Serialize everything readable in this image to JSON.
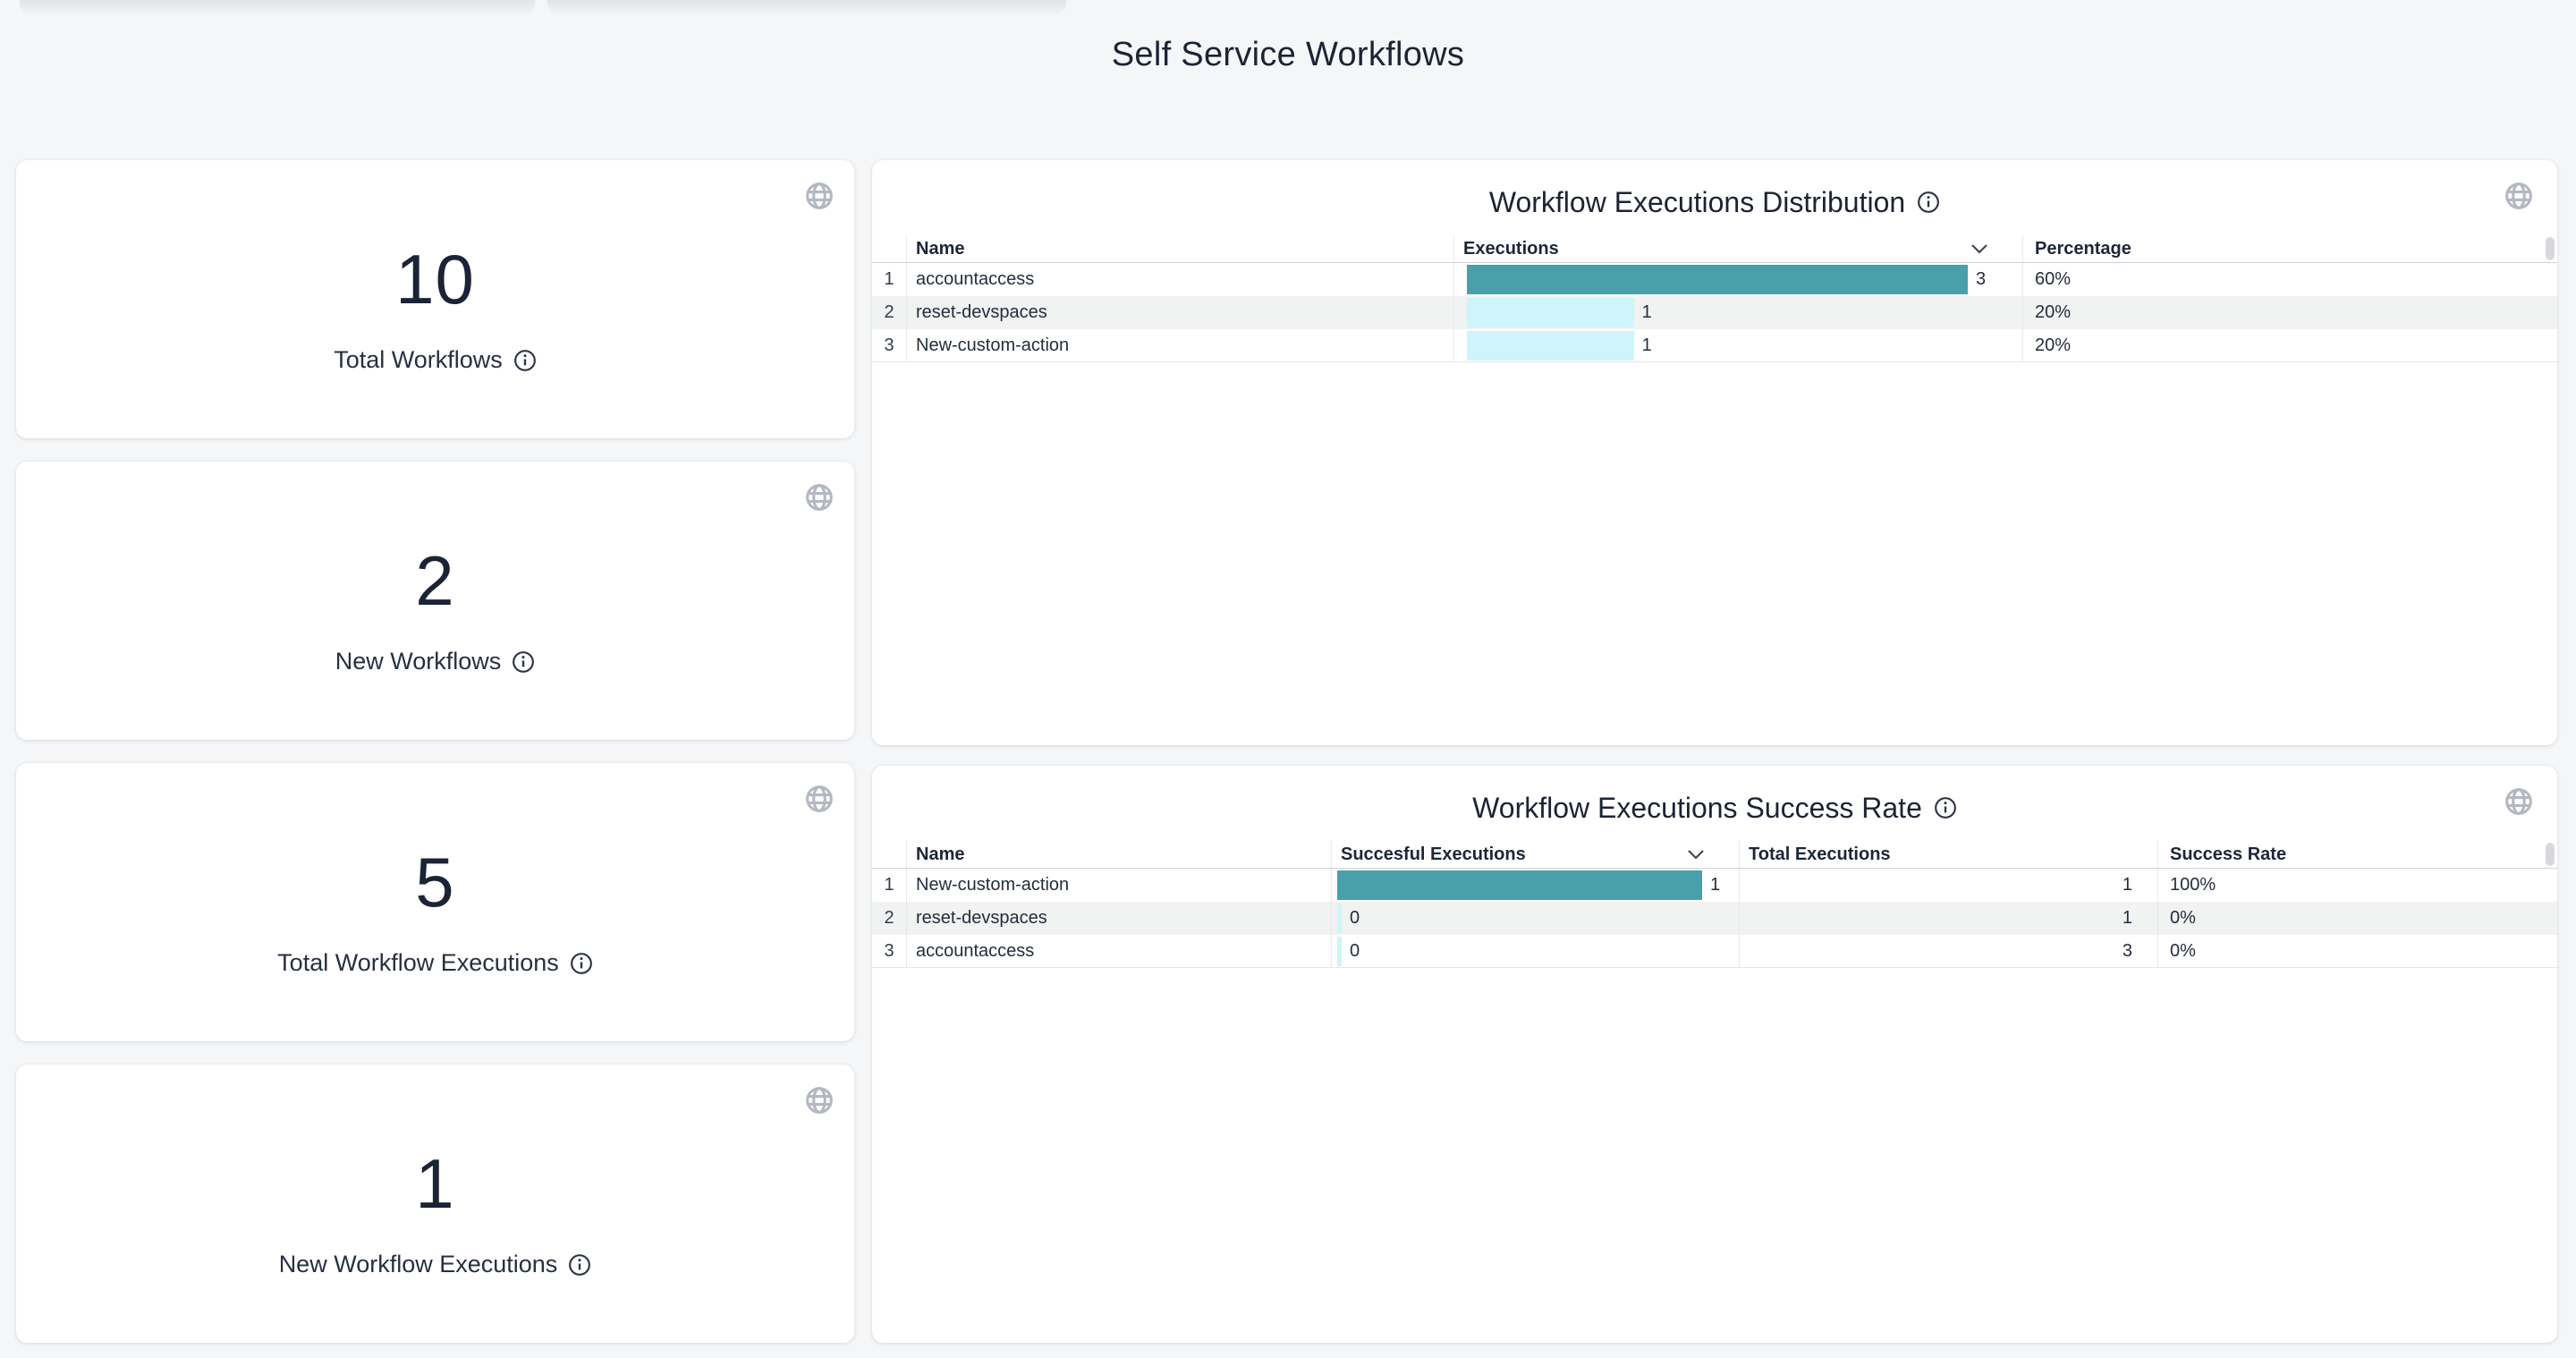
{
  "page": {
    "title": "Self Service Workflows"
  },
  "colors": {
    "bar_max": "#4aa0aa",
    "bar_other": "#cdf5fb",
    "page_background": "#f4f6f8",
    "zebra_row": "#f1f2f2",
    "text_dark": "#1c2433"
  },
  "stat_cards": [
    {
      "value": "10",
      "label": "Total Workflows"
    },
    {
      "value": "2",
      "label": "New Workflows"
    },
    {
      "value": "5",
      "label": "Total Workflow Executions"
    },
    {
      "value": "1",
      "label": "New Workflow Executions"
    }
  ],
  "distribution_table": {
    "title": "Workflow Executions Distribution",
    "columns": [
      "Name",
      "Executions",
      "Percentage"
    ],
    "max_executions": 3,
    "rows": [
      {
        "index": "1",
        "name": "accountaccess",
        "executions": 3,
        "percentage": "60%"
      },
      {
        "index": "2",
        "name": "reset-devspaces",
        "executions": 1,
        "percentage": "20%"
      },
      {
        "index": "3",
        "name": "New-custom-action",
        "executions": 1,
        "percentage": "20%"
      }
    ]
  },
  "success_table": {
    "title": "Workflow Executions Success Rate",
    "columns": [
      "Name",
      "Succesful Executions",
      "Total Executions",
      "Success Rate"
    ],
    "max_successful": 1,
    "rows": [
      {
        "index": "1",
        "name": "New-custom-action",
        "successful": 1,
        "total": "1",
        "rate": "100%"
      },
      {
        "index": "2",
        "name": "reset-devspaces",
        "successful": 0,
        "total": "1",
        "rate": "0%"
      },
      {
        "index": "3",
        "name": "accountaccess",
        "successful": 0,
        "total": "3",
        "rate": "0%"
      }
    ]
  }
}
